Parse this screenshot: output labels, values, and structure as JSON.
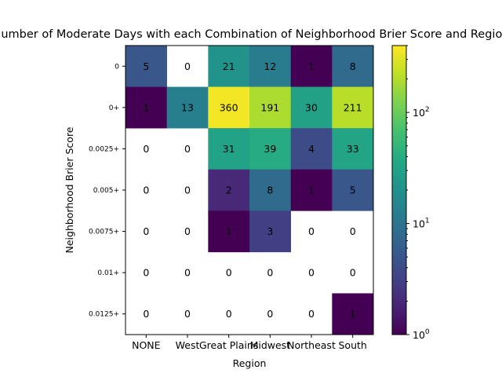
{
  "chart_data": {
    "type": "heatmap",
    "title": "Number of Moderate Days with each Combination of Neighborhood Brier Score and Region",
    "xlabel": "Region",
    "ylabel": "Neighborhood Brier Score",
    "x_categories": [
      "NONE",
      "West",
      "Great Plains",
      "Midwest",
      "Northeast",
      "South"
    ],
    "y_categories": [
      "0",
      "0+",
      "0.0025+",
      "0.005+",
      "0.0075+",
      "0.01+",
      "0.0125+"
    ],
    "values": [
      [
        5,
        0,
        21,
        12,
        1,
        8
      ],
      [
        1,
        13,
        360,
        191,
        30,
        211
      ],
      [
        0,
        0,
        31,
        39,
        4,
        33
      ],
      [
        0,
        0,
        2,
        8,
        1,
        5
      ],
      [
        0,
        0,
        1,
        3,
        0,
        0
      ],
      [
        0,
        0,
        0,
        0,
        0,
        0
      ],
      [
        0,
        0,
        0,
        0,
        0,
        1
      ]
    ],
    "colormap": "viridis",
    "color_scale": "log",
    "color_range": [
      1,
      400
    ],
    "zero_cells_color": "#ffffff",
    "colorbar": {
      "ticks": [
        {
          "label": "10",
          "exp": "0",
          "value": 1
        },
        {
          "label": "10",
          "exp": "1",
          "value": 10
        },
        {
          "label": "10",
          "exp": "2",
          "value": 100
        }
      ]
    },
    "grid": false
  }
}
